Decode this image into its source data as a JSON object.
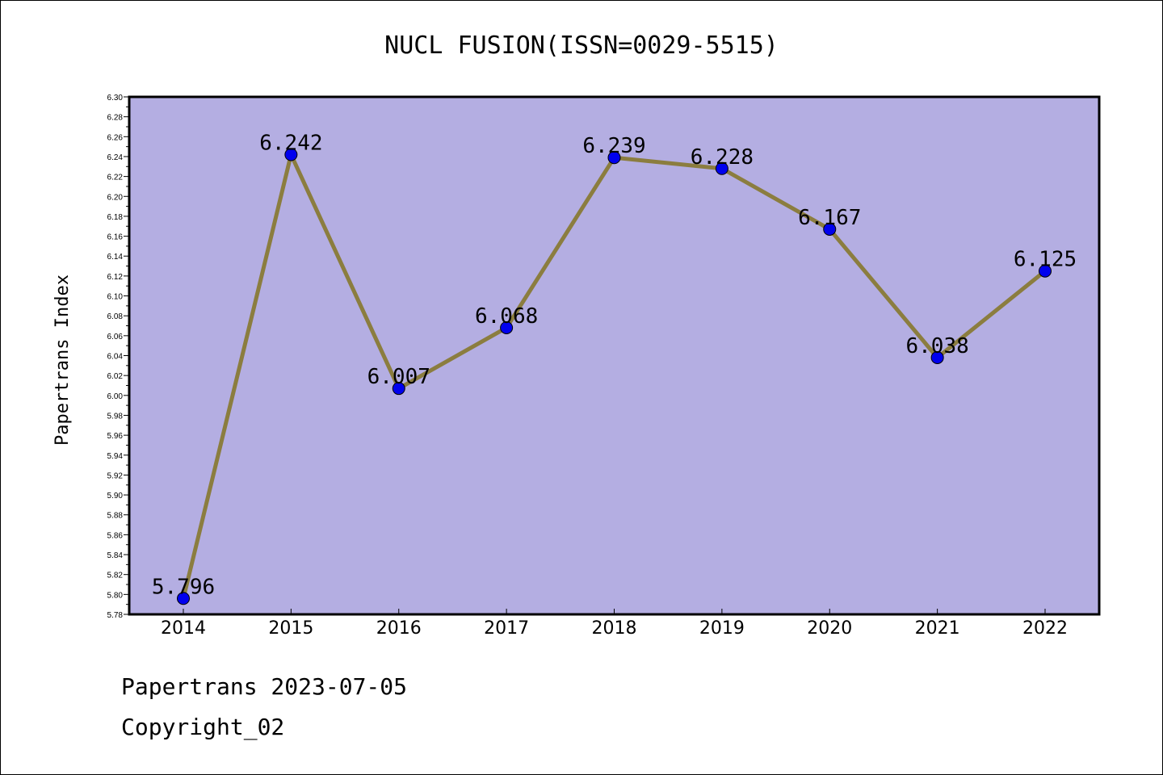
{
  "chart_data": {
    "type": "line",
    "title": "NUCL FUSION(ISSN=0029-5515)",
    "xlabel": "",
    "ylabel": "Papertrans Index",
    "categories": [
      "2014",
      "2015",
      "2016",
      "2017",
      "2018",
      "2019",
      "2020",
      "2021",
      "2022"
    ],
    "series": [
      {
        "values": [
          5.796,
          6.242,
          6.007,
          6.068,
          6.239,
          6.228,
          6.167,
          6.038,
          6.125
        ],
        "data_labels": [
          "5.796",
          "6.242",
          "6.007",
          "6.068",
          "6.239",
          "6.228",
          "6.167",
          "6.038",
          "6.125"
        ]
      }
    ],
    "ylim": [
      5.78,
      6.3
    ],
    "ytick_step": 0.02,
    "grid": false,
    "legend": "none",
    "colors": {
      "plot_background": "#b4aee2",
      "line": "#8b7d3f",
      "marker": "#0000ee"
    }
  },
  "footer": {
    "line1": "Papertrans 2023-07-05",
    "line2": "Copyright_02"
  }
}
